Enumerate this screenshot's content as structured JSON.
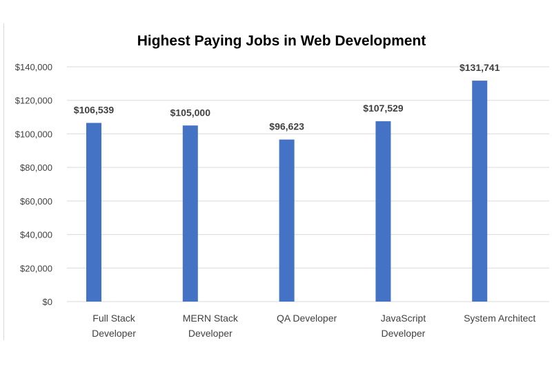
{
  "chart_data": {
    "type": "bar",
    "title": "Highest Paying Jobs in Web Development",
    "xlabel": "",
    "ylabel": "",
    "categories": [
      [
        "Full Stack",
        "Developer"
      ],
      [
        "MERN Stack",
        "Developer"
      ],
      [
        "QA Developer"
      ],
      [
        "JavaScript",
        "Developer"
      ],
      [
        "System Architect"
      ]
    ],
    "values": [
      106539,
      105000,
      96623,
      107529,
      131741
    ],
    "data_labels": [
      "$106,539",
      "$105,000",
      "$96,623",
      "$107,529",
      "$131,741"
    ],
    "ylim": [
      0,
      140000
    ],
    "yticks": [
      0,
      20000,
      40000,
      60000,
      80000,
      100000,
      120000,
      140000
    ],
    "ytick_labels": [
      "$0",
      "$20,000",
      "$40,000",
      "$60,000",
      "$80,000",
      "$100,000",
      "$120,000",
      "$140,000"
    ],
    "grid": true,
    "legend": "none",
    "colors": {
      "bar": "#4472c4",
      "grid": "#d9d9d9",
      "text": "#404040",
      "title": "#595959"
    }
  }
}
